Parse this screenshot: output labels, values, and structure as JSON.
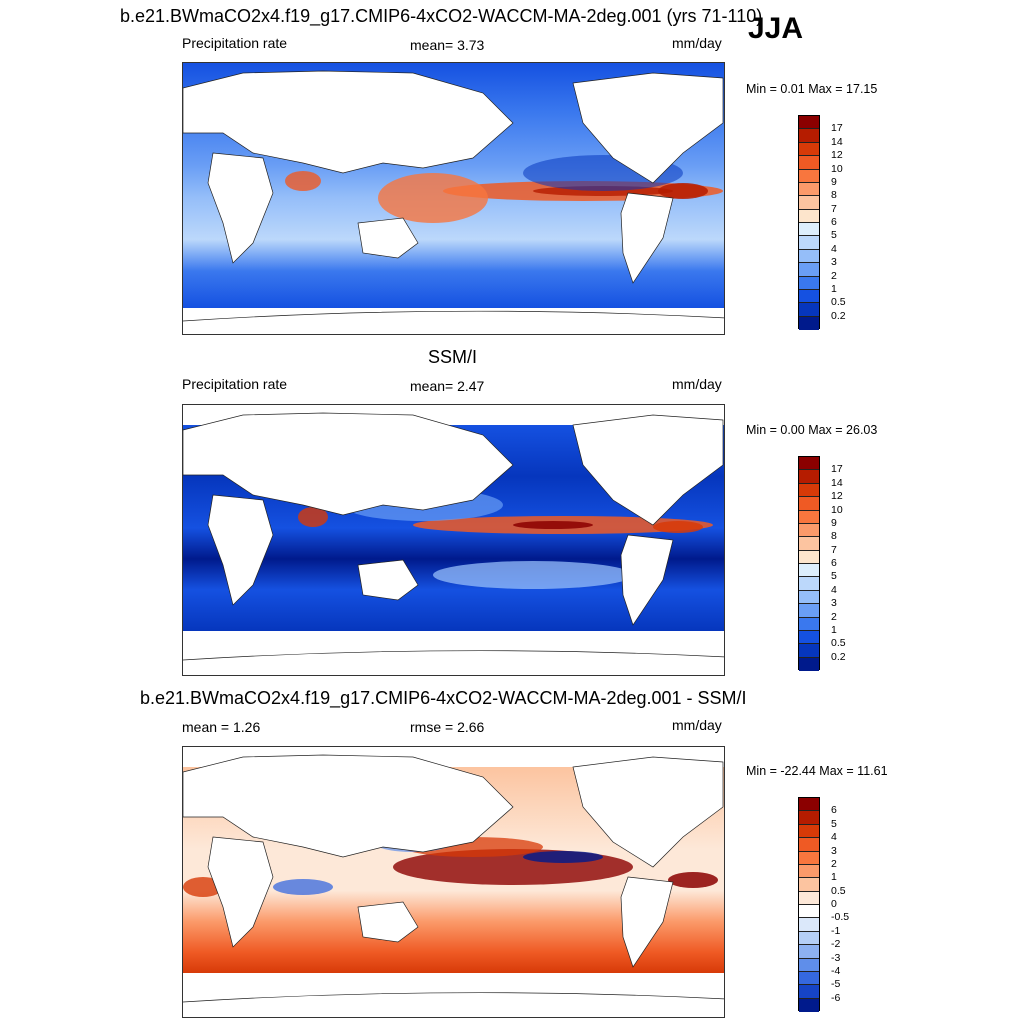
{
  "season": "JJA",
  "panels": [
    {
      "title": "b.e21.BWmaCO2x4.f19_g17.CMIP6-4xCO2-WACCM-MA-2deg.001 (yrs 71-110)",
      "left_label": "Precipitation rate",
      "center_label": "mean=   3.73",
      "units": "mm/day",
      "minmax": "Min =   0.01 Max =  17.15",
      "colorbar_labels": [
        "17",
        "14",
        "12",
        "10",
        "9",
        "8",
        "7",
        "6",
        "5",
        "4",
        "3",
        "2",
        "1",
        "0.5",
        "0.2"
      ],
      "colorbar_colors": [
        "#8b0000",
        "#b51c00",
        "#d73a08",
        "#ef5a24",
        "#f8763e",
        "#fb9a6a",
        "#fcc4a0",
        "#fde5cc",
        "#ddeefc",
        "#bcd8fb",
        "#95bef9",
        "#6a9ef5",
        "#3a78ee",
        "#1551e1",
        "#0636bd",
        "#001a8c"
      ]
    },
    {
      "title": "SSM/I",
      "left_label": "Precipitation rate",
      "center_label": "mean=   2.47",
      "units": "mm/day",
      "minmax": "Min =   0.00 Max =  26.03",
      "colorbar_labels": [
        "17",
        "14",
        "12",
        "10",
        "9",
        "8",
        "7",
        "6",
        "5",
        "4",
        "3",
        "2",
        "1",
        "0.5",
        "0.2"
      ],
      "colorbar_colors": [
        "#8b0000",
        "#b51c00",
        "#d73a08",
        "#ef5a24",
        "#f8763e",
        "#fb9a6a",
        "#fcc4a0",
        "#fde5cc",
        "#ddeefc",
        "#bcd8fb",
        "#95bef9",
        "#6a9ef5",
        "#3a78ee",
        "#1551e1",
        "#0636bd",
        "#001a8c"
      ]
    },
    {
      "title": "b.e21.BWmaCO2x4.f19_g17.CMIP6-4xCO2-WACCM-MA-2deg.001 - SSM/I",
      "left_label": "mean =   1.26",
      "center_label": "rmse =   2.66",
      "units": "mm/day",
      "minmax": "Min = -22.44 Max =  11.61",
      "colorbar_labels": [
        "6",
        "5",
        "4",
        "3",
        "2",
        "1",
        "0.5",
        "0",
        "-0.5",
        "-1",
        "-2",
        "-3",
        "-4",
        "-5",
        "-6"
      ],
      "colorbar_colors": [
        "#8b0000",
        "#b51c00",
        "#d73a08",
        "#ef5a24",
        "#f8763e",
        "#fb9a6a",
        "#fcc4a0",
        "#fde8d8",
        "#ffffff",
        "#dbe8fa",
        "#b5cff6",
        "#8db1f1",
        "#5f8eea",
        "#3568df",
        "#1644c6",
        "#001a8c"
      ]
    }
  ],
  "chart_data": [
    {
      "type": "heatmap",
      "title": "b.e21.BWmaCO2x4.f19_g17.CMIP6-4xCO2-WACCM-MA-2deg.001 (yrs 71-110)",
      "variable": "Precipitation rate",
      "units": "mm/day",
      "mean": 3.73,
      "min": 0.01,
      "max": 17.15,
      "contour_levels": [
        0.2,
        0.5,
        1,
        2,
        3,
        4,
        5,
        6,
        7,
        8,
        9,
        10,
        12,
        14,
        17
      ]
    },
    {
      "type": "heatmap",
      "title": "SSM/I",
      "variable": "Precipitation rate",
      "units": "mm/day",
      "mean": 2.47,
      "min": 0.0,
      "max": 26.03,
      "contour_levels": [
        0.2,
        0.5,
        1,
        2,
        3,
        4,
        5,
        6,
        7,
        8,
        9,
        10,
        12,
        14,
        17
      ]
    },
    {
      "type": "heatmap",
      "title": "b.e21.BWmaCO2x4.f19_g17.CMIP6-4xCO2-WACCM-MA-2deg.001 - SSM/I",
      "units": "mm/day",
      "mean": 1.26,
      "rmse": 2.66,
      "min": -22.44,
      "max": 11.61,
      "contour_levels": [
        -6,
        -5,
        -4,
        -3,
        -2,
        -1,
        -0.5,
        0,
        0.5,
        1,
        2,
        3,
        4,
        5,
        6
      ]
    }
  ]
}
